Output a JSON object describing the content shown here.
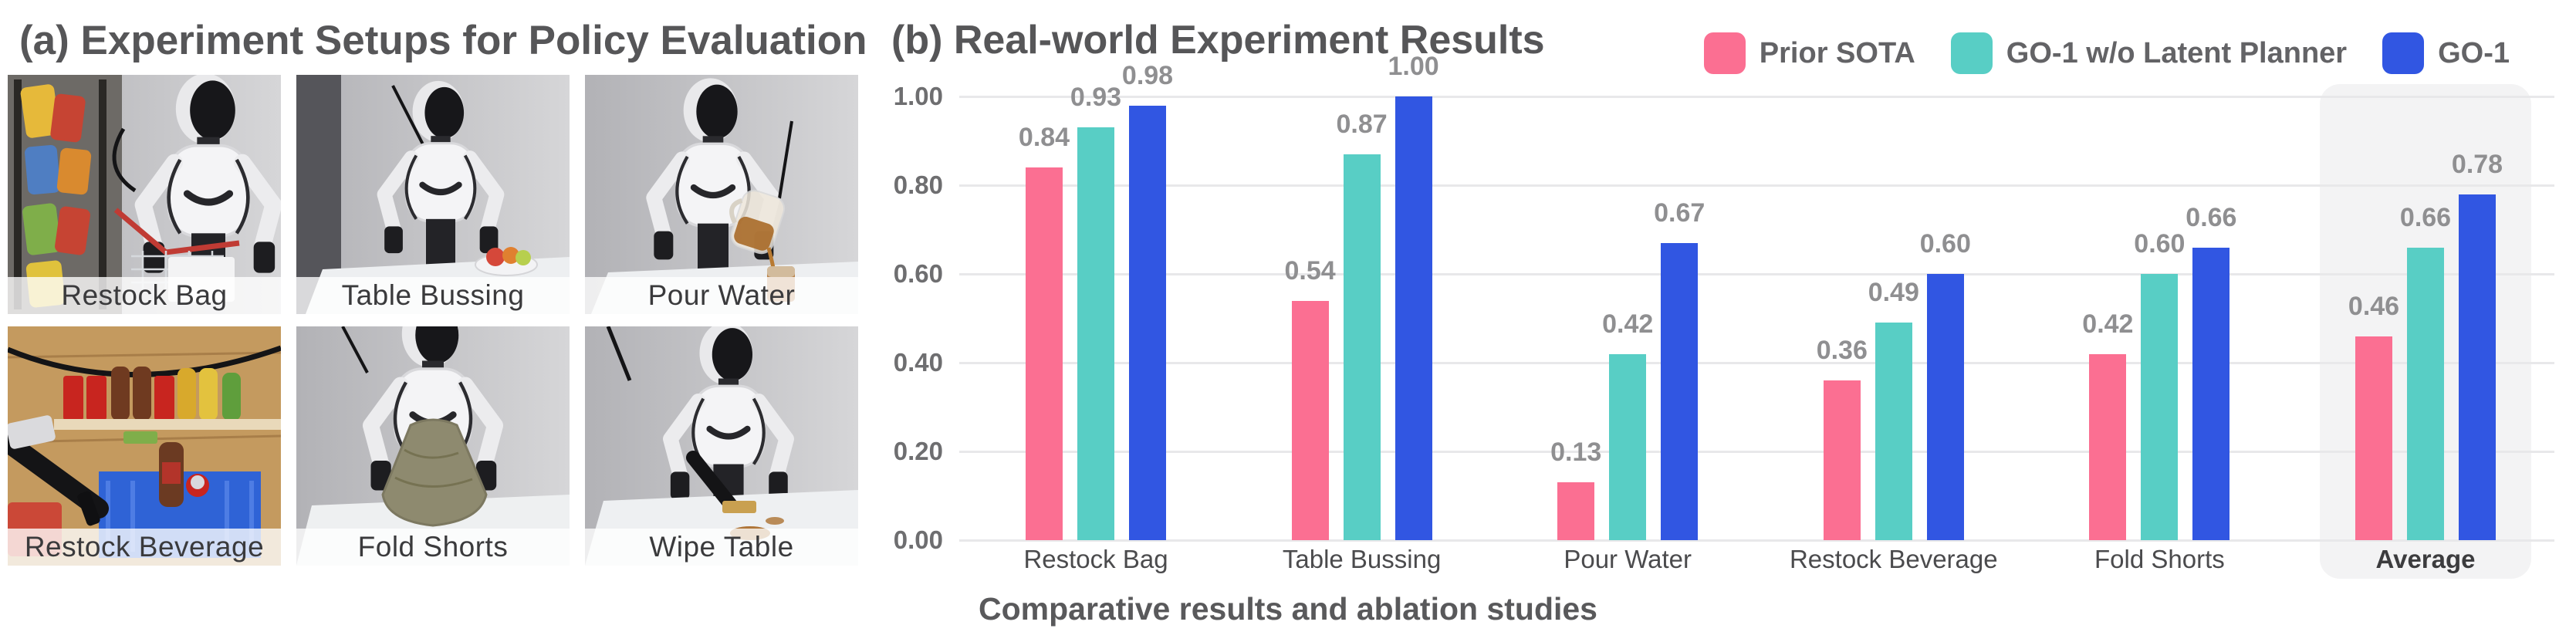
{
  "panel_a": {
    "title": "(a) Experiment Setups for Policy Evaluation",
    "photos": [
      {
        "label": "Restock Bag"
      },
      {
        "label": "Table Bussing"
      },
      {
        "label": "Pour Water"
      },
      {
        "label": "Restock Beverage"
      },
      {
        "label": "Fold Shorts"
      },
      {
        "label": "Wipe Table"
      }
    ]
  },
  "panel_b": {
    "title": "(b) Real-world Experiment Results",
    "caption": "Comparative results and ablation studies"
  },
  "chart_data": {
    "type": "bar",
    "title": "(b) Real-world Experiment Results",
    "categories": [
      "Restock Bag",
      "Table Bussing",
      "Pour Water",
      "Restock Beverage",
      "Fold Shorts",
      "Average"
    ],
    "series": [
      {
        "name": "Prior SOTA",
        "color": "#FB6F92",
        "values": [
          0.84,
          0.54,
          0.13,
          0.36,
          0.42,
          0.46
        ]
      },
      {
        "name": "GO-1 w/o Latent Planner",
        "color": "#58CEC5",
        "values": [
          0.93,
          0.87,
          0.42,
          0.49,
          0.6,
          0.66
        ]
      },
      {
        "name": "GO-1",
        "color": "#3156E2",
        "values": [
          0.98,
          1.0,
          0.67,
          0.6,
          0.66,
          0.78
        ]
      }
    ],
    "ylim": [
      0,
      1
    ],
    "yticks": [
      "0.00",
      "0.20",
      "0.40",
      "0.60",
      "0.80",
      "1.00"
    ],
    "grid": true,
    "value_labels": true,
    "legend_position": "top-right",
    "highlight_category": "Average",
    "xlabel": "Comparative results and ablation studies",
    "ylabel": ""
  },
  "colors": {
    "grid": "#e8e8ea",
    "highlight_bg": "#f3f3f4",
    "tick_text": "#6e6e70",
    "value_text": "#8f8f91",
    "title_text": "#565658"
  }
}
